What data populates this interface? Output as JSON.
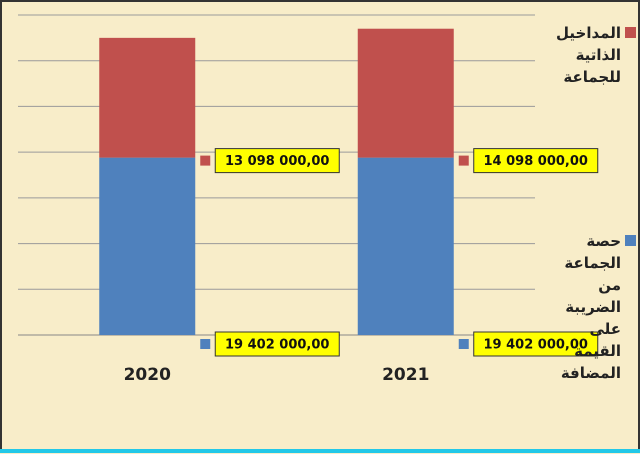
{
  "chart_data": {
    "type": "stacked_bar",
    "categories": [
      "2020",
      "2021"
    ],
    "series": [
      {
        "name": "حصة الجماعة من الضريبة على القيمة المضافة",
        "color": "#4f81bd",
        "values": [
          19402000,
          19402000
        ],
        "value_labels": [
          "19 402 000,00",
          "19 402 000,00"
        ]
      },
      {
        "name": "المداخيل الذاتية للجماعة",
        "color": "#c0504d",
        "values": [
          13098000,
          14098000
        ],
        "value_labels": [
          "13 098 000,00",
          "14 098 000,00"
        ]
      }
    ],
    "ylim": [
      0,
      35000000
    ],
    "yticks": [
      0,
      5000000,
      10000000,
      15000000,
      20000000,
      25000000,
      30000000,
      35000000
    ],
    "grid": true
  }
}
